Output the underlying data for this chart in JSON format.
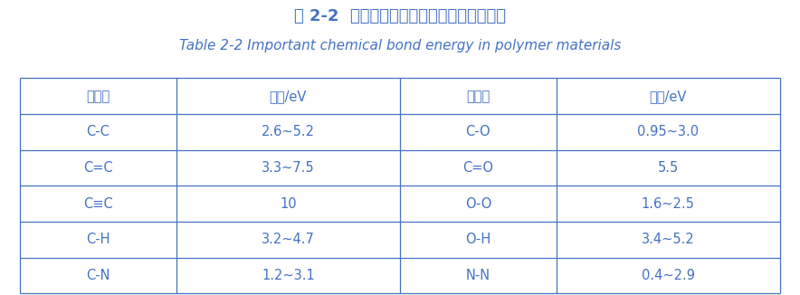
{
  "title_cn": "表 2-2  高分子材料中常见的重要化学键键能",
  "title_en": "Table 2-2 Important chemical bond energy in polymer materials",
  "headers": [
    "化学键",
    "键能/eV",
    "化学键",
    "键能/eV"
  ],
  "rows": [
    [
      "C-C",
      "2.6~5.2",
      "C-O",
      "0.95~3.0"
    ],
    [
      "C=C",
      "3.3~7.5",
      "C=O",
      "5.5"
    ],
    [
      "C≡C",
      "10",
      "O-O",
      "1.6~2.5"
    ],
    [
      "C-H",
      "3.2~4.7",
      "O-H",
      "3.4~5.2"
    ],
    [
      "C-N",
      "1.2~3.1",
      "N-N",
      "0.4~2.9"
    ]
  ],
  "header_text_color": "#4472c4",
  "cell_text_color": "#4472c4",
  "border_color": "#4472c4",
  "title_cn_color": "#4472c4",
  "title_en_color": "#4472c4",
  "bg_color": "#ffffff",
  "title_cn_fontsize": 13,
  "title_en_fontsize": 11,
  "header_fontsize": 10.5,
  "cell_fontsize": 10.5
}
